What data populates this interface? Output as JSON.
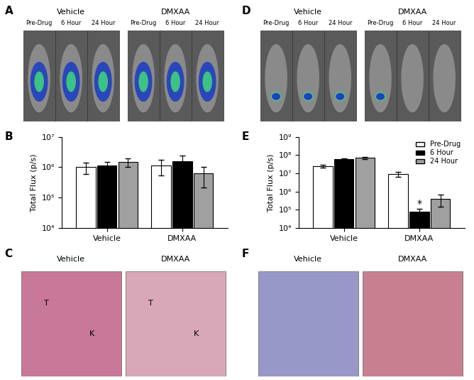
{
  "chart_data": [
    {
      "type": "bar",
      "log": "y",
      "y_label": "Total Flux (p/s)",
      "categories": [
        "Vehicle",
        "DMXAA"
      ],
      "series": [
        {
          "name": "Pre-Drug",
          "color": "#ffffff",
          "values": [
            1000000,
            1150000
          ],
          "errors": [
            400000,
            600000
          ]
        },
        {
          "name": "6 Hour",
          "color": "#000000",
          "values": [
            1150000,
            1550000
          ],
          "errors": [
            350000,
            900000
          ]
        },
        {
          "name": "24 Hour",
          "color": "#a0a0a0",
          "values": [
            1450000,
            620000
          ],
          "errors": [
            450000,
            400000
          ]
        }
      ],
      "ylim": [
        10000,
        10000000
      ],
      "yticks": [
        {
          "value": 10000,
          "label": "10⁴"
        },
        {
          "value": 100000,
          "label": "10⁵"
        },
        {
          "value": 1000000,
          "label": "10⁶"
        },
        {
          "value": 10000000,
          "label": "10⁷"
        }
      ]
    },
    {
      "type": "bar",
      "log": "y",
      "y_label": "Total Flux (p/s)",
      "legend": "upper right",
      "categories": [
        "Vehicle",
        "DMXAA"
      ],
      "series": [
        {
          "name": "Pre-Drug",
          "color": "#ffffff",
          "values": [
            25000000,
            9000000
          ],
          "errors": [
            5000000,
            2500000
          ]
        },
        {
          "name": "6 Hour",
          "color": "#000000",
          "values": [
            58000000,
            80000
          ],
          "errors": [
            7000000,
            35000
          ]
        },
        {
          "name": "24 Hour",
          "color": "#a0a0a0",
          "values": [
            70000000,
            400000
          ],
          "errors": [
            10000000,
            250000
          ]
        }
      ],
      "annotations": [
        {
          "text": "*",
          "category": "DMXAA",
          "series": "6 Hour"
        }
      ],
      "ylim": [
        10000,
        1000000000
      ],
      "yticks": [
        {
          "value": 10000,
          "label": "10⁴"
        },
        {
          "value": 100000,
          "label": "10⁵"
        },
        {
          "value": 1000000,
          "label": "10⁶"
        },
        {
          "value": 10000000,
          "label": "10⁷"
        },
        {
          "value": 100000000,
          "label": "10⁸"
        },
        {
          "value": 1000000000,
          "label": "10⁹"
        }
      ]
    }
  ],
  "panel_letters": [
    "A",
    "B",
    "C",
    "D",
    "E",
    "F"
  ],
  "mouse_panels": [
    {
      "groups": [
        {
          "name": "Vehicle",
          "times": [
            "Pre-Drug",
            "6 Hour",
            "24 Hour"
          ]
        },
        {
          "name": "DMXAA",
          "times": [
            "Pre-Drug",
            "6 Hour",
            "24 Hour"
          ]
        }
      ]
    },
    {
      "groups": [
        {
          "name": "Vehicle",
          "times": [
            "Pre-Drug",
            "6 Hour",
            "24 Hour"
          ]
        },
        {
          "name": "DMXAA",
          "times": [
            "Pre-Drug",
            "6 Hour",
            "24 Hour"
          ]
        }
      ]
    }
  ],
  "histology_panels": [
    {
      "images": [
        {
          "title": "Vehicle",
          "marks": [
            "T",
            "K"
          ]
        },
        {
          "title": "DMXAA",
          "marks": [
            "T",
            "K"
          ]
        }
      ]
    },
    {
      "images": [
        {
          "title": "Vehicle",
          "marks": []
        },
        {
          "title": "DMXAA",
          "marks": []
        }
      ]
    }
  ]
}
